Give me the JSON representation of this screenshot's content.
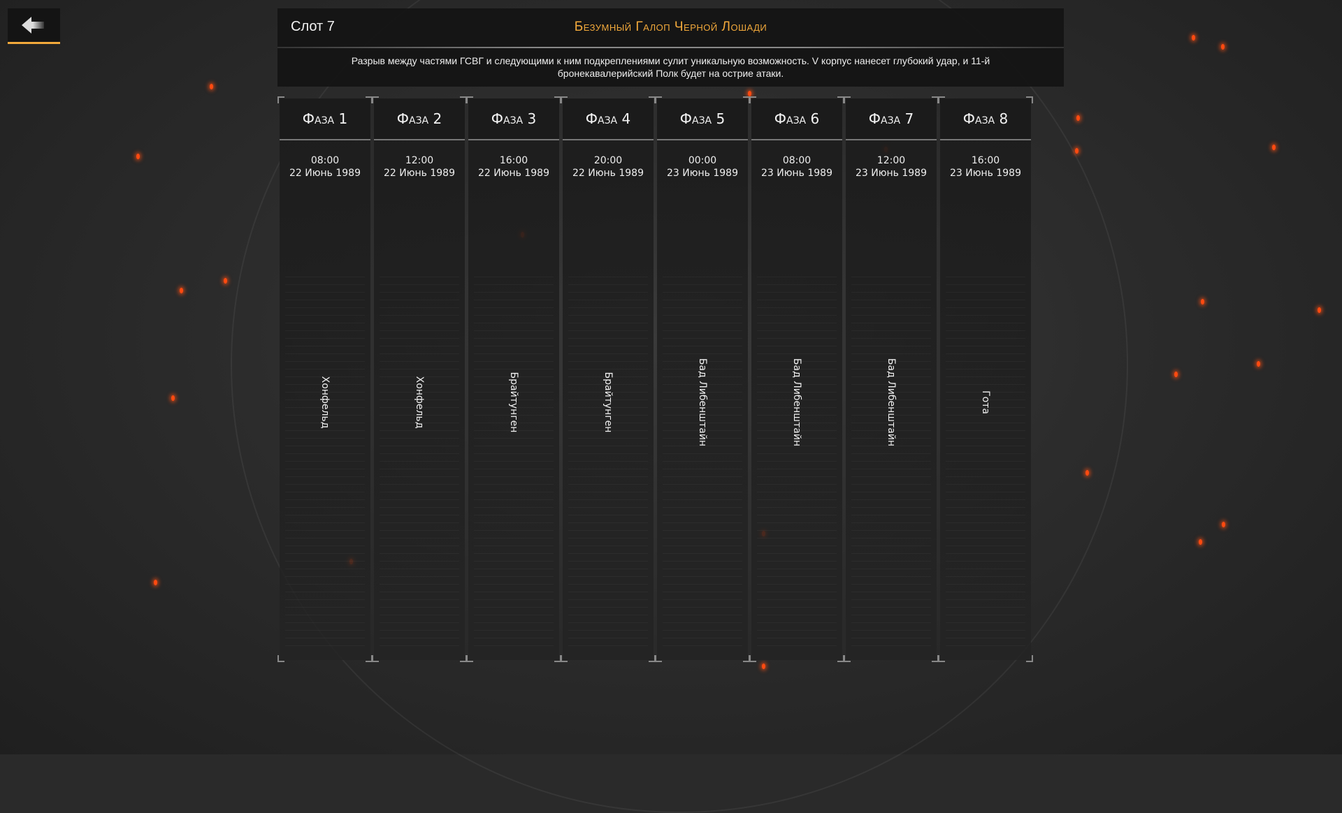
{
  "header": {
    "slot": "Слот 7",
    "title": "Безумный Галоп Черной Лошади",
    "description": "Разрыв между частями ГСВГ и следующими к ним подкреплениями сулит уникальную возможность. V корпус нанесет глубокий удар, и 11-й бронекавалерийский Полк будет на острие атаки."
  },
  "back_button": {
    "icon": "arrow-left-icon"
  },
  "colors": {
    "accent": "#f2a93b",
    "ember": "#ff4a10"
  },
  "phases": [
    {
      "label": "Фаза 1",
      "time": "08:00",
      "date": "22 Июнь 1989",
      "location": "Хонфельд"
    },
    {
      "label": "Фаза 2",
      "time": "12:00",
      "date": "22 Июнь 1989",
      "location": "Хонфельд"
    },
    {
      "label": "Фаза 3",
      "time": "16:00",
      "date": "22 Июнь 1989",
      "location": "Брайтунген"
    },
    {
      "label": "Фаза 4",
      "time": "20:00",
      "date": "22 Июнь 1989",
      "location": "Брайтунген"
    },
    {
      "label": "Фаза 5",
      "time": "00:00",
      "date": "23 Июнь 1989",
      "location": "Бад Либенштайн"
    },
    {
      "label": "Фаза 6",
      "time": "08:00",
      "date": "23 Июнь 1989",
      "location": "Бад Либенштайн"
    },
    {
      "label": "Фаза 7",
      "time": "12:00",
      "date": "23 Июнь 1989",
      "location": "Бад Либенштайн"
    },
    {
      "label": "Фаза 8",
      "time": "16:00",
      "date": "23 Июнь 1989",
      "location": "Гота"
    }
  ]
}
